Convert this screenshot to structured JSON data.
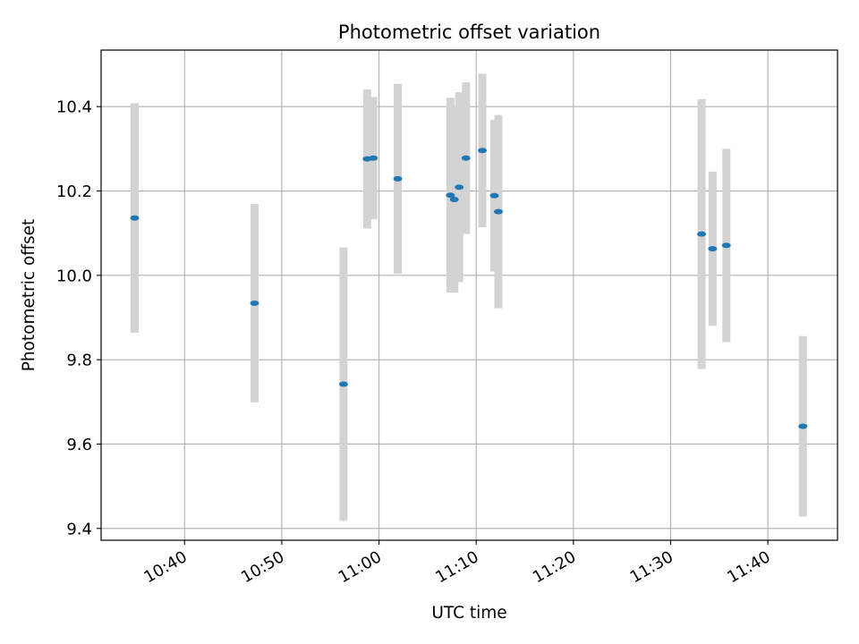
{
  "chart_data": {
    "type": "scatter",
    "title": "Photometric offset variation",
    "xlabel": "UTC time",
    "ylabel": "Photometric offset",
    "grid": true,
    "xlim": [
      "10:31:25",
      "11:47:10"
    ],
    "ylim": [
      9.372,
      10.534
    ],
    "x_ticks": [
      "10:40",
      "10:50",
      "11:00",
      "11:10",
      "11:20",
      "11:30",
      "11:40"
    ],
    "y_ticks": [
      "9.4",
      "9.6",
      "9.8",
      "10.0",
      "10.2",
      "10.4"
    ],
    "point_color": "#1f77b4",
    "errorbar_color": "#d3d3d3",
    "points": [
      {
        "x": "10:34:52",
        "y": 10.136,
        "err": 0.272
      },
      {
        "x": "10:47:12",
        "y": 9.934,
        "err": 0.235
      },
      {
        "x": "10:56:21",
        "y": 9.742,
        "err": 0.324
      },
      {
        "x": "10:58:47",
        "y": 10.276,
        "err": 0.165
      },
      {
        "x": "10:59:25",
        "y": 10.278,
        "err": 0.145
      },
      {
        "x": "11:01:56",
        "y": 10.229,
        "err": 0.225
      },
      {
        "x": "11:07:21",
        "y": 10.19,
        "err": 0.231
      },
      {
        "x": "11:07:45",
        "y": 10.18,
        "err": 0.221
      },
      {
        "x": "11:08:15",
        "y": 10.209,
        "err": 0.225
      },
      {
        "x": "11:08:57",
        "y": 10.278,
        "err": 0.18
      },
      {
        "x": "11:10:38",
        "y": 10.296,
        "err": 0.182
      },
      {
        "x": "11:11:52",
        "y": 10.189,
        "err": 0.18
      },
      {
        "x": "11:12:17",
        "y": 10.151,
        "err": 0.229
      },
      {
        "x": "11:33:11",
        "y": 10.098,
        "err": 0.32
      },
      {
        "x": "11:34:19",
        "y": 10.063,
        "err": 0.183
      },
      {
        "x": "11:35:44",
        "y": 10.071,
        "err": 0.229
      },
      {
        "x": "11:43:36",
        "y": 9.642,
        "err": 0.214
      }
    ]
  }
}
